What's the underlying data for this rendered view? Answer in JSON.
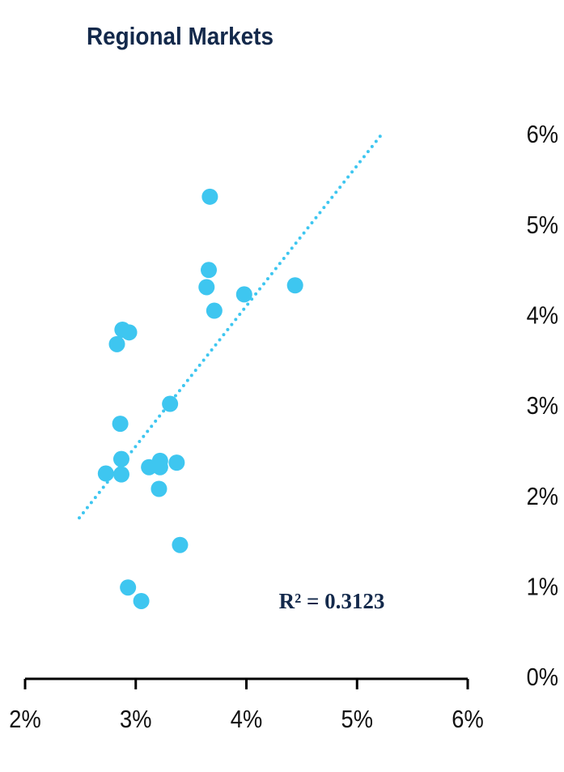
{
  "chart_data": {
    "type": "scatter",
    "title": "Regional Markets",
    "annotation": "R² = 0.3123",
    "color": "#3ec6f0",
    "x": [
      3.67,
      3.66,
      3.64,
      3.71,
      3.98,
      4.44,
      2.88,
      2.94,
      2.83,
      3.31,
      2.86,
      2.87,
      2.73,
      2.87,
      3.12,
      3.22,
      3.22,
      3.37,
      3.21,
      3.4,
      2.93,
      3.05
    ],
    "values": [
      5.33,
      4.52,
      4.33,
      4.07,
      4.25,
      4.35,
      3.86,
      3.83,
      3.7,
      3.04,
      2.82,
      2.43,
      2.27,
      2.26,
      2.34,
      2.41,
      2.34,
      2.39,
      2.1,
      1.48,
      1.01,
      0.86
    ],
    "trendline": {
      "x": [
        2.49,
        5.21
      ],
      "y": [
        1.78,
        6.0
      ]
    },
    "xlim": [
      2,
      6
    ],
    "xticks": [
      {
        "value": 2,
        "label": "2%"
      },
      {
        "value": 3,
        "label": "3%"
      },
      {
        "value": 4,
        "label": "4%"
      },
      {
        "value": 5,
        "label": "5%"
      },
      {
        "value": 6,
        "label": "6%"
      }
    ],
    "ylim": [
      0,
      6
    ],
    "yticks": [
      {
        "value": 0,
        "label": "0%"
      },
      {
        "value": 1,
        "label": "1%"
      },
      {
        "value": 2,
        "label": "2%"
      },
      {
        "value": 3,
        "label": "3%"
      },
      {
        "value": 4,
        "label": "4%"
      },
      {
        "value": 5,
        "label": "5%"
      },
      {
        "value": 6,
        "label": "6%"
      }
    ]
  }
}
